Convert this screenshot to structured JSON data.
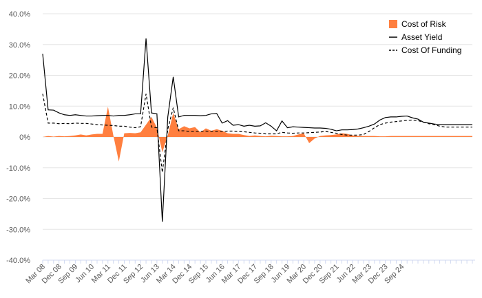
{
  "chart_data": {
    "type": "line",
    "title": "",
    "xlabel": "",
    "ylabel": "",
    "ylim": [
      -40,
      40
    ],
    "y_ticks": [
      "40.0%",
      "30.0%",
      "20.0%",
      "10.0%",
      "0%",
      "-10.0%",
      "-20.0%",
      "-30.0%",
      "-40.0%"
    ],
    "x_tick_labels": [
      "Mar 08",
      "Dec 08",
      "Sep 09",
      "Jun 10",
      "Mar 11",
      "Dec 11",
      "Sep 12",
      "Jun 13",
      "Mar 14",
      "Dec 14",
      "Sep 15",
      "Jun 16",
      "Mar 17",
      "Dec 17",
      "Sep 18",
      "Jun 19",
      "Mar 20",
      "Dec 20",
      "Sep 21",
      "Jun 22",
      "Mar 23",
      "Dec 23",
      "Sep 24"
    ],
    "x_tick_every": 3,
    "legend": [
      "Cost of Risk",
      "Asset Yield",
      "Cost Of Funding"
    ],
    "legend_position": "top-right",
    "colors": {
      "cost_of_risk": "#FF7F3F",
      "asset_yield": "#000000",
      "cost_of_funding": "#000000",
      "grid": "#E6E6E6",
      "axis": "#D0D8F0"
    },
    "series": [
      {
        "name": "Cost of Risk",
        "style": "area",
        "values": [
          0.0,
          0.3,
          0.1,
          0.3,
          0.2,
          0.3,
          0.5,
          0.8,
          0.5,
          0.8,
          1.0,
          1.0,
          9.8,
          0.4,
          -8.0,
          1.2,
          1.3,
          1.2,
          1.5,
          4.0,
          6.5,
          3.0,
          -5.0,
          0.5,
          7.8,
          2.5,
          3.5,
          2.8,
          3.2,
          1.5,
          2.8,
          2.0,
          2.5,
          2.0,
          1.2,
          1.0,
          1.0,
          0.6,
          0.3,
          0.5,
          0.3,
          0.2,
          0.4,
          0.3,
          0.2,
          0.2,
          0.3,
          0.8,
          1.2,
          -2.0,
          -0.5,
          0.3,
          0.5,
          0.6,
          0.8,
          1.2,
          1.0,
          0.5,
          0.3,
          0.3,
          0.3,
          0.3,
          0.2,
          0.2,
          0.3,
          0.3,
          0.3,
          0.3,
          0.3,
          0.3,
          0.3,
          0.3,
          0.3,
          0.3,
          0.3,
          0.3,
          0.3,
          0.3,
          0.3,
          0.3
        ]
      },
      {
        "name": "Asset Yield",
        "style": "solid",
        "values": [
          27.0,
          8.8,
          8.7,
          7.8,
          7.2,
          7.0,
          7.2,
          7.0,
          6.8,
          6.8,
          6.9,
          7.0,
          7.0,
          6.8,
          7.0,
          7.0,
          7.2,
          7.5,
          7.5,
          32.0,
          7.8,
          7.5,
          -27.5,
          6.5,
          19.5,
          6.5,
          7.0,
          7.0,
          7.0,
          6.9,
          7.0,
          7.5,
          7.6,
          4.5,
          5.3,
          3.8,
          4.0,
          3.5,
          3.8,
          3.5,
          3.6,
          4.6,
          3.5,
          2.0,
          5.2,
          3.0,
          3.3,
          3.2,
          3.1,
          3.0,
          2.9,
          2.9,
          2.8,
          2.5,
          2.0,
          2.3,
          2.3,
          2.4,
          2.6,
          3.0,
          3.5,
          4.2,
          5.5,
          6.3,
          6.5,
          6.5,
          6.7,
          6.8,
          6.2,
          5.8,
          4.8,
          4.5,
          4.2,
          4.0,
          4.0,
          4.0,
          4.0,
          4.0,
          4.0,
          4.0
        ]
      },
      {
        "name": "Cost Of Funding",
        "style": "dashed",
        "values": [
          14.0,
          4.5,
          4.5,
          4.3,
          4.4,
          4.3,
          4.5,
          4.4,
          4.4,
          4.2,
          4.0,
          3.9,
          3.8,
          3.7,
          3.5,
          3.5,
          3.2,
          3.0,
          3.3,
          14.0,
          3.2,
          3.0,
          -11.5,
          2.5,
          9.5,
          2.0,
          2.0,
          1.8,
          1.8,
          1.8,
          1.9,
          1.8,
          1.8,
          1.8,
          1.9,
          1.9,
          1.8,
          1.7,
          1.5,
          1.3,
          1.2,
          1.0,
          1.0,
          1.0,
          1.5,
          1.3,
          1.2,
          1.3,
          1.3,
          1.4,
          1.5,
          1.6,
          1.8,
          1.5,
          1.2,
          0.8,
          0.6,
          0.6,
          0.6,
          0.8,
          1.8,
          3.0,
          4.0,
          4.5,
          4.8,
          5.0,
          5.2,
          5.4,
          5.5,
          5.3,
          4.8,
          4.3,
          4.0,
          3.5,
          3.2,
          3.2,
          3.2,
          3.2,
          3.2,
          3.2
        ]
      }
    ]
  }
}
